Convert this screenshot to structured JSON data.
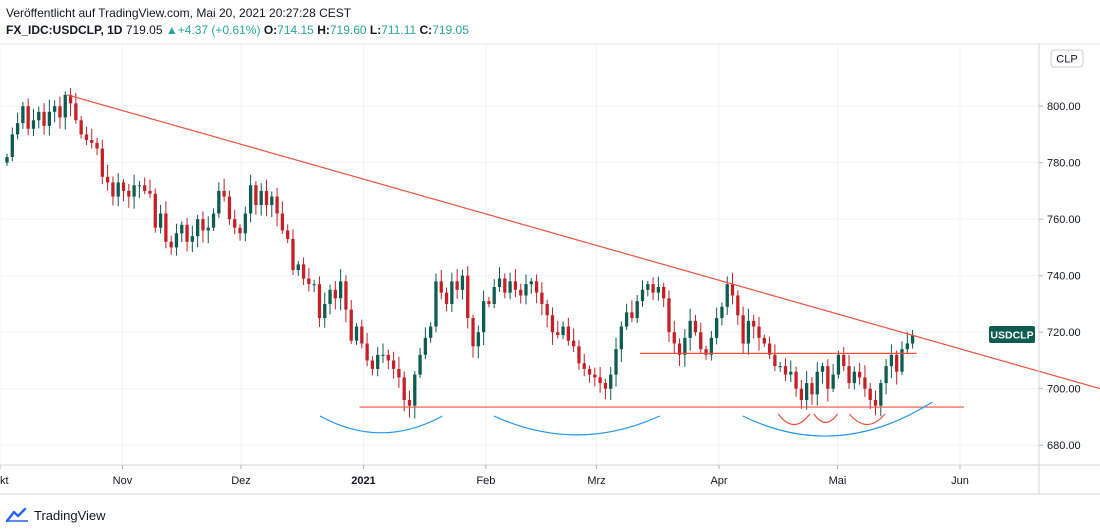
{
  "header": {
    "published": "Veröffentlicht auf TradingView.com, Mai 20, 2021 20:27:28 CEST",
    "symbol": "FX_IDC:USDCLP, 1D",
    "last": "719.05",
    "change": "▲+4.37 (+0.61%)",
    "o_label": "O:",
    "o_value": "714.15",
    "h_label": "H:",
    "h_value": "719.60",
    "l_label": "L:",
    "l_value": "711.11",
    "c_label": "C:",
    "c_value": "719.05"
  },
  "footer": {
    "brand": "TradingView"
  },
  "colors": {
    "up": "#0e5b4f",
    "down": "#c42126",
    "trend": "#f0513e",
    "arc": "#2196f3",
    "price_tag": "#0e5b4f"
  },
  "chart_data": {
    "type": "candlestick",
    "currency_label": "CLP",
    "price_tag": "USDCLP",
    "ylim": [
      673,
      822
    ],
    "yticks": [
      "800.00",
      "780.00",
      "760.00",
      "740.00",
      "720.00",
      "700.00",
      "680.00"
    ],
    "ytick_values": [
      800,
      780,
      760,
      740,
      720,
      700,
      680
    ],
    "xticks": [
      {
        "label": "kt",
        "date": "2020-10-01"
      },
      {
        "label": "Nov",
        "date": "2020-11-01"
      },
      {
        "label": "Dez",
        "date": "2020-12-01"
      },
      {
        "label": "2021",
        "date": "2021-01-01",
        "bold": true
      },
      {
        "label": "Feb",
        "date": "2021-02-01"
      },
      {
        "label": "Mrz",
        "date": "2021-03-01"
      },
      {
        "label": "Apr",
        "date": "2021-04-01"
      },
      {
        "label": "Mai",
        "date": "2021-05-01"
      },
      {
        "label": "Jun",
        "date": "2021-06-01"
      }
    ],
    "xrange": [
      "2020-10-01",
      "2021-06-21"
    ],
    "closes": [
      782,
      790,
      794,
      800,
      792,
      795,
      798,
      793,
      798,
      800,
      796,
      804,
      801,
      795,
      790,
      788,
      787,
      785,
      775,
      773,
      768,
      773,
      770,
      768,
      772,
      772,
      770,
      769,
      757,
      762,
      752,
      750,
      755,
      758,
      752,
      754,
      760,
      756,
      757,
      762,
      770,
      768,
      760,
      757,
      755,
      762,
      772,
      765,
      770,
      765,
      768,
      762,
      756,
      753,
      742,
      744,
      739,
      737,
      737,
      725,
      730,
      735,
      732,
      738,
      728,
      717,
      722,
      716,
      710,
      707,
      712,
      712,
      710,
      707,
      704,
      696,
      694,
      705,
      712,
      718,
      722,
      738,
      734,
      730,
      738,
      735,
      740,
      725,
      715,
      720,
      731,
      730,
      736,
      739,
      734,
      738,
      735,
      733,
      737,
      738,
      734,
      730,
      726,
      720,
      719,
      722,
      717,
      715,
      709,
      707,
      705,
      704,
      702,
      700,
      705,
      714,
      722,
      727,
      725,
      731,
      735,
      737,
      734,
      736,
      732,
      720,
      716,
      712,
      718,
      724,
      720,
      714,
      712,
      718,
      725,
      729,
      737,
      733,
      726,
      716,
      724,
      722,
      718,
      716,
      712,
      708,
      708,
      705,
      706,
      700,
      696,
      702,
      698,
      706,
      708,
      700,
      705,
      712,
      708,
      702,
      706,
      704,
      700,
      696,
      694,
      702,
      708,
      712,
      706,
      714,
      716,
      719
    ],
    "trendline": [
      {
        "date": "2020-10-18",
        "value": 804
      },
      {
        "date": "2021-05-21",
        "value": 718.5
      }
    ],
    "support_line": {
      "start": "2020-12-31",
      "end": "2021-06-02",
      "value": 693.5
    },
    "resistance_line": {
      "start": "2021-03-12",
      "end": "2021-05-21",
      "value": 712.5
    },
    "arcs": [
      {
        "start": "2020-12-21",
        "end": "2021-01-21",
        "depth": 8
      },
      {
        "start": "2021-02-03",
        "end": "2021-03-17",
        "depth": 9
      },
      {
        "start": "2021-04-07",
        "end": "2021-05-25",
        "depth": 11
      },
      {
        "start": "2021-04-16",
        "end": "2021-04-24",
        "depth": 5
      },
      {
        "start": "2021-04-25",
        "end": "2021-05-01",
        "depth": 4
      },
      {
        "start": "2021-05-04",
        "end": "2021-05-13",
        "depth": 5
      }
    ]
  }
}
